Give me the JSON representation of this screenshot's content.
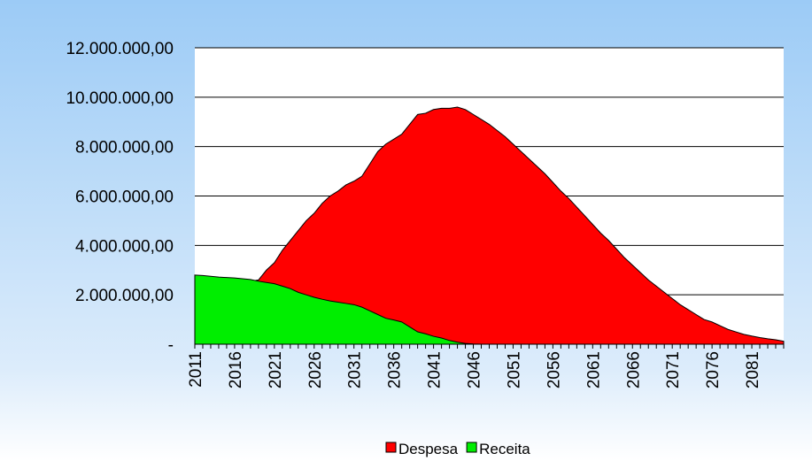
{
  "chart_data": {
    "type": "area",
    "categories": [
      "2011",
      null,
      null,
      null,
      null,
      "2016",
      null,
      null,
      null,
      null,
      "2021",
      null,
      null,
      null,
      null,
      "2026",
      null,
      null,
      null,
      null,
      "2031",
      null,
      null,
      null,
      null,
      "2036",
      null,
      null,
      null,
      null,
      "2041",
      null,
      null,
      null,
      null,
      "2046",
      null,
      null,
      null,
      null,
      "2051",
      null,
      null,
      null,
      null,
      "2056",
      null,
      null,
      null,
      null,
      "2061",
      null,
      null,
      null,
      null,
      "2066",
      null,
      null,
      null,
      null,
      "2071",
      null,
      null,
      null,
      null,
      "2076",
      null,
      null,
      null,
      null,
      "2081",
      null,
      null,
      null,
      null
    ],
    "series": [
      {
        "name": "Despesa",
        "color": "#ff0000",
        "values": [
          2400000,
          2400000,
          2450000,
          2450000,
          2500000,
          2500000,
          2500000,
          2550000,
          2600000,
          3000000,
          3300000,
          3800000,
          4200000,
          4600000,
          5000000,
          5300000,
          5700000,
          6000000,
          6200000,
          6450000,
          6600000,
          6800000,
          7300000,
          7800000,
          8100000,
          8300000,
          8500000,
          8900000,
          9300000,
          9350000,
          9500000,
          9550000,
          9550000,
          9600000,
          9500000,
          9300000,
          9100000,
          8900000,
          8650000,
          8400000,
          8100000,
          7800000,
          7500000,
          7200000,
          6900000,
          6550000,
          6200000,
          5900000,
          5550000,
          5200000,
          4850000,
          4500000,
          4200000,
          3850000,
          3500000,
          3200000,
          2900000,
          2600000,
          2350000,
          2100000,
          1850000,
          1600000,
          1400000,
          1200000,
          1000000,
          900000,
          750000,
          600000,
          500000,
          400000,
          330000,
          270000,
          220000,
          180000,
          120000
        ]
      },
      {
        "name": "Receita",
        "color": "#00ee00",
        "values": [
          2800000,
          2780000,
          2750000,
          2720000,
          2700000,
          2680000,
          2650000,
          2620000,
          2550000,
          2500000,
          2450000,
          2350000,
          2250000,
          2100000,
          2000000,
          1900000,
          1820000,
          1750000,
          1700000,
          1650000,
          1600000,
          1500000,
          1350000,
          1200000,
          1050000,
          980000,
          900000,
          700000,
          500000,
          420000,
          320000,
          250000,
          150000,
          80000,
          30000,
          10000,
          0,
          0,
          0,
          0,
          0,
          0,
          0,
          0,
          0,
          0,
          0,
          0,
          0,
          0,
          0,
          0,
          0,
          0,
          0,
          0,
          0,
          0,
          0,
          0,
          0,
          0,
          0,
          0,
          0,
          0,
          0,
          0,
          0,
          0,
          0,
          0,
          0,
          0,
          0
        ]
      }
    ],
    "ylim": [
      0,
      12000000
    ],
    "yticks": [
      {
        "value": 0,
        "label": "-"
      },
      {
        "value": 2000000,
        "label": "2.000.000,00"
      },
      {
        "value": 4000000,
        "label": "4.000.000,00"
      },
      {
        "value": 6000000,
        "label": "6.000.000,00"
      },
      {
        "value": 8000000,
        "label": "8.000.000,00"
      },
      {
        "value": 10000000,
        "label": "10.000.000,00"
      },
      {
        "value": 12000000,
        "label": "12.000.000,00"
      }
    ],
    "grid": true,
    "legend": "bottom"
  }
}
